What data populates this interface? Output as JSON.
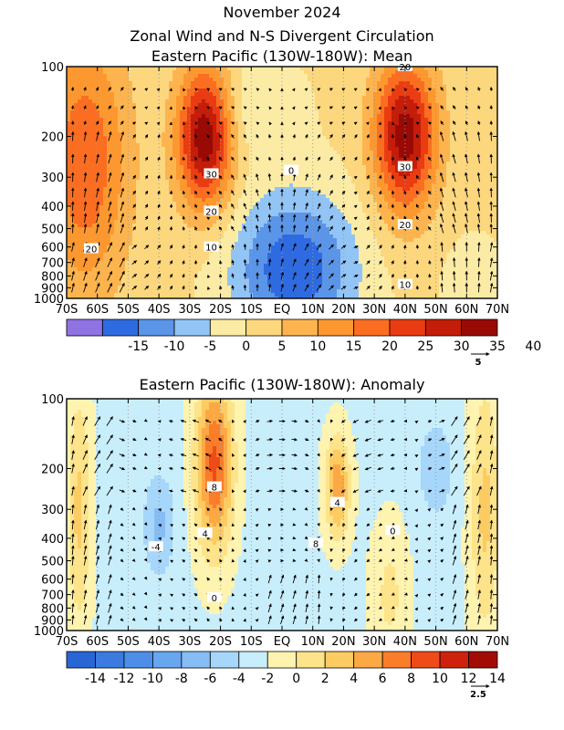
{
  "header": {
    "title": "November 2024",
    "subtitle": "Zonal Wind and N-S Divergent Circulation"
  },
  "chart_data": [
    {
      "type": "heatmap",
      "title": "Eastern Pacific (130W-180W): Mean",
      "x_ticks": [
        "70S",
        "60S",
        "50S",
        "40S",
        "30S",
        "20S",
        "10S",
        "EQ",
        "10N",
        "20N",
        "30N",
        "40N",
        "50N",
        "60N",
        "70N"
      ],
      "y_ticks": [
        100,
        200,
        300,
        400,
        500,
        600,
        700,
        800,
        900,
        1000
      ],
      "y_scale": "log-pressure",
      "colorbar_labels": [
        "-15",
        "-10",
        "-5",
        "0",
        "5",
        "10",
        "15",
        "20",
        "25",
        "30",
        "35",
        "40"
      ],
      "colorbar_colors": [
        "#8f73e3",
        "#2f6be0",
        "#5b95e8",
        "#92c4f5",
        "#fbeba4",
        "#fcd77e",
        "#fdb44e",
        "#fd9830",
        "#fb6e21",
        "#ea3c12",
        "#c41d0a",
        "#9a0a05"
      ],
      "contour_labels": [
        "20",
        "30",
        "20",
        "10",
        "0",
        "20",
        "30",
        "20",
        "10"
      ],
      "vector_scale": "5",
      "jets": [
        {
          "lat": -65,
          "p": 250,
          "u": 22
        },
        {
          "lat": -25,
          "p": 200,
          "u": 40
        },
        {
          "lat": 40,
          "p": 200,
          "u": 38
        }
      ],
      "easterly_minimum": {
        "lat": 5,
        "p": 750,
        "u": -12
      }
    },
    {
      "type": "heatmap",
      "title": "Eastern Pacific (130W-180W): Anomaly",
      "x_ticks": [
        "70S",
        "60S",
        "50S",
        "40S",
        "30S",
        "20S",
        "10S",
        "EQ",
        "10N",
        "20N",
        "30N",
        "40N",
        "50N",
        "60N",
        "70N"
      ],
      "y_ticks": [
        100,
        200,
        300,
        400,
        500,
        600,
        700,
        800,
        900,
        1000
      ],
      "y_scale": "log-pressure",
      "colorbar_labels": [
        "-14",
        "-12",
        "-10",
        "-8",
        "-6",
        "-4",
        "-2",
        "0",
        "2",
        "4",
        "6",
        "8",
        "10",
        "12",
        "14"
      ],
      "colorbar_colors": [
        "#2866d6",
        "#3b7be0",
        "#4d8fe8",
        "#68a6ef",
        "#85bdf4",
        "#a6d6f9",
        "#c8eefc",
        "#fff3b0",
        "#fde38a",
        "#fccb62",
        "#fca845",
        "#fb7d2a",
        "#ef4b18",
        "#cf220c",
        "#a30c05"
      ],
      "contour_labels": [
        "8",
        "4",
        "0",
        "-4",
        "4",
        "0",
        "8"
      ],
      "vector_scale": "2.5",
      "features": [
        {
          "lat": -22,
          "p": 200,
          "u": 10
        },
        {
          "lat": 18,
          "p": 250,
          "u": 7
        },
        {
          "lat": -40,
          "p": 400,
          "u": -5
        }
      ]
    }
  ]
}
